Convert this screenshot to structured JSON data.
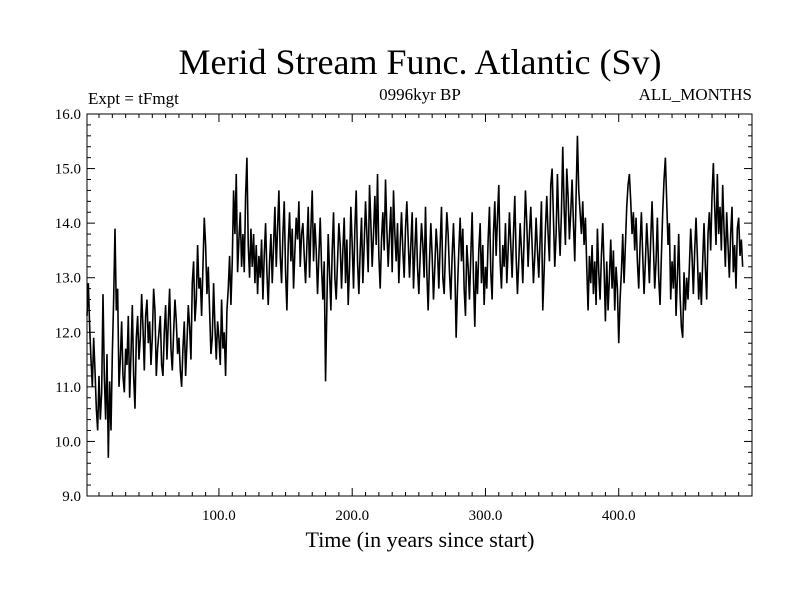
{
  "chart_data": {
    "type": "line",
    "title": "Merid Stream Func. Atlantic (Sv)",
    "subtitle_left": "Expt = tFmgt",
    "subtitle_center": "0996kyr BP",
    "subtitle_right": "ALL_MONTHS",
    "xlabel": "Time (in years since start)",
    "ylabel": "",
    "xlim": [
      1,
      500
    ],
    "ylim": [
      9.0,
      16.0
    ],
    "x_ticks": [
      100.0,
      200.0,
      300.0,
      400.0
    ],
    "x_tick_labels": [
      "100.0",
      "200.0",
      "300.0",
      "400.0"
    ],
    "y_ticks": [
      9.0,
      10.0,
      11.0,
      12.0,
      13.0,
      14.0,
      15.0,
      16.0
    ],
    "y_tick_labels": [
      "9.0",
      "10.0",
      "11.0",
      "12.0",
      "13.0",
      "14.0",
      "15.0",
      "16.0"
    ],
    "grid": false,
    "line_color": "#000000",
    "series": [
      {
        "name": "Merid Stream Func. Atlantic",
        "x_start": 1,
        "x_step": 1,
        "values": [
          12.3,
          12.9,
          12.1,
          11.5,
          11.0,
          11.9,
          11.3,
          10.6,
          10.2,
          11.2,
          10.4,
          10.9,
          12.7,
          11.2,
          10.4,
          11.6,
          9.7,
          11.1,
          10.2,
          11.6,
          12.6,
          13.9,
          12.4,
          12.8,
          11.0,
          11.5,
          12.2,
          11.2,
          10.9,
          11.7,
          11.4,
          12.3,
          10.8,
          11.6,
          12.5,
          11.2,
          10.6,
          11.9,
          12.3,
          11.5,
          11.9,
          12.7,
          12.1,
          11.3,
          12.3,
          12.6,
          11.8,
          12.2,
          11.4,
          11.9,
          12.8,
          12.4,
          11.2,
          11.7,
          12.0,
          12.3,
          11.4,
          11.2,
          12.0,
          12.5,
          11.5,
          12.2,
          12.8,
          11.7,
          11.3,
          12.0,
          12.6,
          12.2,
          11.6,
          11.9,
          11.3,
          11.0,
          11.7,
          12.2,
          11.2,
          11.8,
          12.5,
          12.1,
          11.5,
          12.9,
          13.3,
          12.2,
          12.6,
          13.6,
          12.8,
          13.0,
          12.3,
          13.2,
          14.1,
          13.6,
          12.7,
          13.2,
          12.4,
          11.6,
          11.9,
          12.9,
          12.1,
          11.5,
          12.2,
          11.9,
          11.4,
          12.6,
          11.7,
          12.0,
          11.2,
          12.4,
          12.8,
          13.4,
          12.5,
          13.3,
          14.6,
          13.8,
          14.9,
          13.1,
          13.7,
          14.2,
          13.2,
          13.8,
          13.1,
          14.5,
          15.2,
          13.6,
          13.0,
          13.9,
          13.2,
          13.8,
          12.9,
          13.6,
          12.7,
          13.4,
          13.0,
          13.7,
          12.6,
          13.4,
          14.0,
          13.1,
          12.5,
          13.3,
          13.8,
          12.9,
          13.6,
          14.3,
          13.2,
          13.9,
          14.6,
          13.4,
          12.9,
          13.8,
          14.4,
          13.1,
          12.4,
          13.6,
          14.2,
          13.3,
          13.9,
          12.8,
          13.5,
          14.1,
          13.7,
          14.4,
          13.2,
          13.8,
          14.0,
          13.4,
          12.9,
          13.6,
          14.3,
          13.0,
          13.9,
          14.6,
          13.3,
          14.0,
          13.5,
          12.7,
          13.4,
          14.1,
          13.2,
          12.6,
          13.3,
          11.1,
          12.5,
          13.8,
          13.1,
          12.4,
          13.5,
          14.2,
          13.0,
          12.6,
          13.3,
          14.0,
          13.6,
          12.8,
          13.5,
          14.1,
          12.9,
          13.7,
          12.5,
          13.2,
          14.3,
          13.6,
          12.8,
          13.9,
          14.6,
          13.3,
          12.7,
          13.5,
          14.1,
          12.9,
          13.6,
          14.4,
          13.8,
          13.1,
          14.7,
          14.0,
          13.2,
          13.8,
          14.5,
          13.6,
          14.9,
          13.4,
          12.8,
          13.7,
          14.2,
          13.5,
          14.8,
          13.9,
          13.2,
          13.8,
          14.3,
          13.1,
          14.6,
          13.8,
          13.3,
          14.0,
          12.9,
          13.6,
          14.2,
          13.5,
          13.0,
          13.9,
          14.4,
          13.7,
          13.0,
          13.6,
          14.2,
          12.8,
          13.5,
          14.1,
          13.2,
          12.7,
          13.4,
          14.0,
          13.6,
          13.0,
          14.3,
          13.1,
          12.4,
          13.3,
          14.0,
          13.4,
          12.6,
          13.2,
          13.9,
          13.5,
          12.8,
          13.6,
          14.3,
          13.0,
          12.7,
          13.5,
          14.2,
          13.8,
          13.1,
          12.6,
          13.4,
          14.0,
          13.2,
          11.9,
          12.8,
          13.5,
          14.1,
          13.3,
          13.9,
          12.8,
          12.3,
          13.6,
          13.2,
          12.6,
          13.4,
          14.2,
          13.0,
          12.1,
          13.3,
          12.7,
          13.5,
          14.0,
          12.9,
          13.6,
          12.5,
          13.2,
          12.8,
          13.7,
          14.3,
          13.1,
          12.6,
          13.8,
          14.4,
          13.4,
          14.1,
          14.7,
          13.3,
          12.8,
          13.6,
          13.2,
          14.0,
          12.9,
          13.5,
          14.2,
          13.6,
          13.0,
          13.8,
          14.5,
          13.4,
          12.7,
          13.3,
          14.0,
          13.5,
          12.9,
          13.7,
          14.6,
          14.0,
          13.2,
          13.8,
          14.3,
          13.6,
          12.9,
          13.4,
          14.1,
          13.5,
          13.0,
          13.7,
          14.4,
          12.4,
          13.1,
          13.9,
          14.5,
          13.8,
          13.3,
          14.7,
          15.0,
          14.1,
          13.2,
          13.8,
          14.9,
          14.0,
          13.4,
          14.2,
          15.4,
          14.3,
          13.6,
          15.0,
          14.5,
          13.7,
          14.2,
          14.8,
          14.0,
          13.3,
          14.5,
          15.6,
          14.6,
          14.2,
          13.8,
          14.4,
          13.6,
          14.1,
          13.2,
          12.4,
          13.4,
          12.9,
          13.6,
          12.7,
          13.3,
          12.5,
          13.9,
          13.1,
          12.6,
          13.4,
          14.0,
          13.2,
          12.2,
          13.3,
          12.4,
          13.0,
          13.7,
          12.8,
          13.5,
          12.4,
          13.2,
          12.8,
          11.8,
          12.6,
          13.1,
          13.8,
          12.9,
          13.6,
          14.3,
          14.7,
          14.9,
          14.4,
          13.8,
          14.2,
          13.5,
          14.1,
          13.3,
          12.8,
          13.6,
          14.2,
          13.4,
          12.7,
          13.3,
          14.0,
          13.5,
          12.9,
          13.7,
          14.4,
          13.6,
          12.8,
          13.3,
          14.1,
          13.0,
          12.5,
          13.4,
          14.2,
          14.8,
          15.2,
          14.4,
          13.6,
          14.0,
          12.6,
          13.3,
          12.8,
          13.6,
          12.3,
          13.0,
          13.8,
          12.7,
          12.1,
          11.9,
          13.1,
          12.4,
          13.0,
          12.6,
          13.2,
          13.9,
          13.4,
          12.7,
          13.5,
          14.1,
          13.4,
          12.6,
          13.1,
          12.5,
          13.3,
          14.0,
          13.2,
          12.6,
          13.8,
          14.2,
          13.5,
          14.5,
          15.1,
          14.3,
          13.6,
          14.9,
          13.8,
          14.3,
          13.5,
          14.7,
          13.9,
          13.2,
          14.2,
          13.6,
          13.0,
          13.8,
          14.3,
          13.1,
          13.6,
          12.8,
          13.9,
          14.1,
          13.4,
          13.7,
          13.2
        ]
      }
    ]
  }
}
